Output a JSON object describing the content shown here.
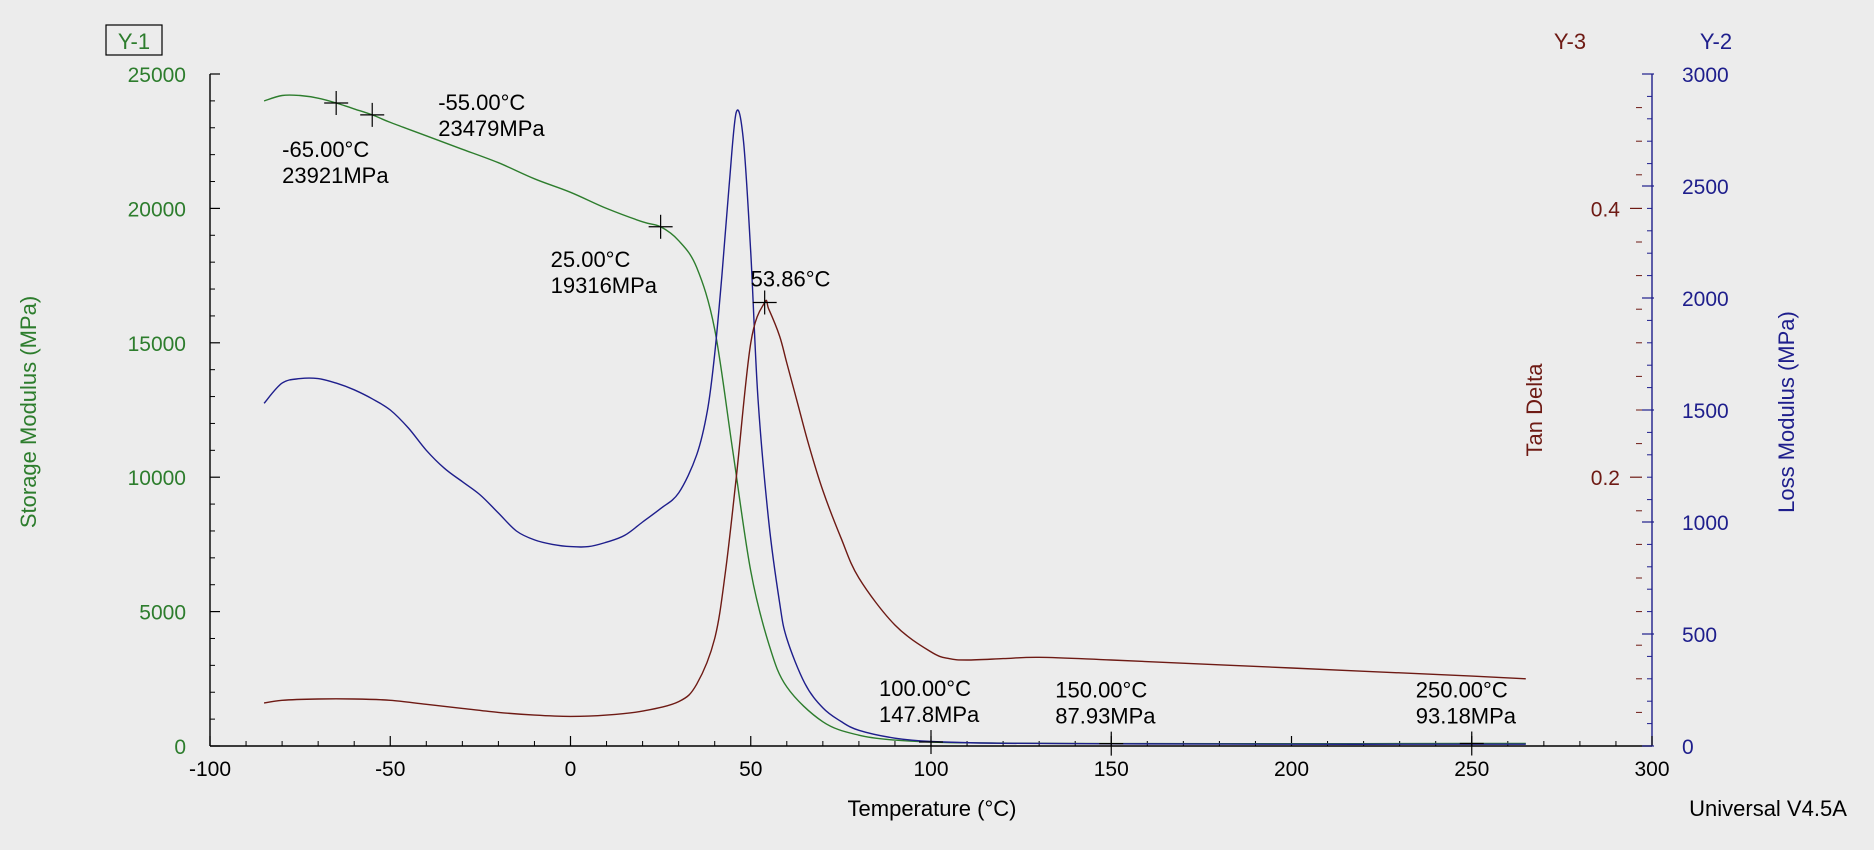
{
  "colors": {
    "storage": "#2d7d2d",
    "loss": "#1e1e8c",
    "tan": "#6e1a14",
    "axis": "#000000"
  },
  "labels": {
    "y1_tag": "Y-1",
    "y2_tag": "Y-2",
    "y3_tag": "Y-3",
    "y1_title": "Storage Modulus (MPa)",
    "y2_title": "Loss Modulus (MPa)",
    "y3_title": "Tan Delta",
    "x_title": "Temperature (°C)",
    "software": "Universal V4.5A"
  },
  "chart_data": {
    "type": "line",
    "title": "",
    "xlabel": "Temperature (°C)",
    "xlim": [
      -100,
      300
    ],
    "xticks": [
      -100,
      -50,
      0,
      50,
      100,
      150,
      200,
      250,
      300
    ],
    "axes": {
      "y1": {
        "label": "Storage Modulus (MPa)",
        "lim": [
          0,
          25000
        ],
        "ticks": [
          0,
          5000,
          10000,
          15000,
          20000,
          25000
        ]
      },
      "y2": {
        "label": "Loss Modulus (MPa)",
        "lim": [
          0,
          3000
        ],
        "ticks": [
          0,
          500,
          1000,
          1500,
          2000,
          2500,
          3000
        ]
      },
      "y3": {
        "label": "Tan Delta",
        "lim": [
          0,
          0.5
        ],
        "ticks": [
          0.2,
          0.4
        ]
      }
    },
    "grid": false,
    "series": [
      {
        "axis": "y1",
        "x": [
          -85,
          -80,
          -75,
          -70,
          -65,
          -60,
          -55,
          -50,
          -40,
          -30,
          -20,
          -10,
          0,
          10,
          20,
          25,
          30,
          35,
          40,
          45,
          50,
          55,
          60,
          70,
          80,
          90,
          100,
          110,
          130,
          150,
          200,
          250,
          265
        ],
        "y": [
          24000,
          24200,
          24200,
          24100,
          23921,
          23700,
          23479,
          23200,
          22700,
          22200,
          21700,
          21100,
          20600,
          20000,
          19500,
          19316,
          18800,
          17800,
          15500,
          11000,
          6500,
          3800,
          2200,
          900,
          400,
          220,
          147.8,
          120,
          100,
          87.93,
          85,
          93.18,
          95
        ]
      },
      {
        "axis": "y2",
        "x": [
          -85,
          -80,
          -75,
          -70,
          -65,
          -60,
          -55,
          -50,
          -45,
          -40,
          -35,
          -30,
          -25,
          -20,
          -15,
          -10,
          -5,
          0,
          5,
          10,
          15,
          20,
          25,
          30,
          35,
          38,
          40,
          42,
          44,
          46,
          48,
          50,
          52,
          55,
          58,
          60,
          65,
          70,
          75,
          80,
          90,
          100,
          120,
          150,
          200,
          250,
          265
        ],
        "y": [
          1530,
          1620,
          1640,
          1640,
          1620,
          1590,
          1550,
          1500,
          1420,
          1320,
          1240,
          1180,
          1120,
          1040,
          960,
          920,
          900,
          890,
          890,
          910,
          940,
          1000,
          1060,
          1130,
          1300,
          1500,
          1750,
          2100,
          2500,
          2830,
          2700,
          2200,
          1550,
          1000,
          640,
          480,
          280,
          170,
          110,
          70,
          35,
          20,
          12,
          10,
          8,
          8,
          8
        ]
      },
      {
        "axis": "y3",
        "x": [
          -85,
          -80,
          -70,
          -60,
          -50,
          -40,
          -30,
          -20,
          -10,
          0,
          10,
          20,
          30,
          35,
          40,
          43,
          46,
          50,
          53.86,
          55,
          58,
          60,
          63,
          66,
          70,
          75,
          80,
          90,
          100,
          105,
          110,
          120,
          130,
          150,
          200,
          250,
          265
        ],
        "y": [
          0.032,
          0.034,
          0.035,
          0.035,
          0.034,
          0.031,
          0.028,
          0.025,
          0.023,
          0.022,
          0.023,
          0.026,
          0.033,
          0.046,
          0.08,
          0.13,
          0.2,
          0.3,
          0.33,
          0.325,
          0.305,
          0.285,
          0.255,
          0.225,
          0.19,
          0.155,
          0.125,
          0.09,
          0.07,
          0.065,
          0.064,
          0.065,
          0.066,
          0.064,
          0.058,
          0.052,
          0.05
        ]
      }
    ],
    "annotations": [
      {
        "series": "y1",
        "x": -65,
        "y": 23921,
        "line1": "-65.00°C",
        "line2": "23921MPa"
      },
      {
        "series": "y1",
        "x": -55,
        "y": 23479,
        "line1": "-55.00°C",
        "line2": "23479MPa"
      },
      {
        "series": "y1",
        "x": 25,
        "y": 19316,
        "line1": "25.00°C",
        "line2": "19316MPa"
      },
      {
        "series": "y3",
        "x": 53.86,
        "y": 0.33,
        "line1": "53.86°C",
        "line2": ""
      },
      {
        "series": "y1",
        "x": 100,
        "y": 147.8,
        "line1": "100.00°C",
        "line2": "147.8MPa"
      },
      {
        "series": "y1",
        "x": 150,
        "y": 87.93,
        "line1": "150.00°C",
        "line2": "87.93MPa"
      },
      {
        "series": "y1",
        "x": 250,
        "y": 93.18,
        "line1": "250.00°C",
        "line2": "93.18MPa"
      }
    ]
  }
}
